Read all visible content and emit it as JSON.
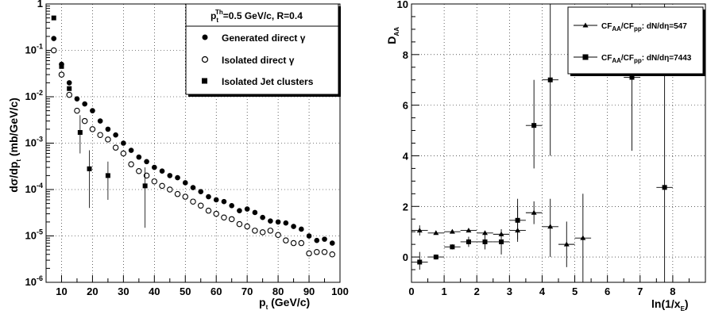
{
  "chart_data": [
    {
      "type": "scatter",
      "y_scale": "log",
      "xlim": [
        5,
        100
      ],
      "ylim": [
        1e-06,
        1
      ],
      "grid": true,
      "legend_position": "top-right",
      "xlabel": {
        "main": "p",
        "sub": "t",
        "unit": " (GeV/c)"
      },
      "ylabel": {
        "main": "dσ/dp",
        "sub": "t",
        "unit": " (mb/GeV/c)"
      },
      "x_ticks": [
        10,
        20,
        30,
        40,
        50,
        60,
        70,
        80,
        90,
        100
      ],
      "y_ticks": [
        {
          "value": 1e-06,
          "base": "10",
          "exp": "-6"
        },
        {
          "value": 1e-05,
          "base": "10",
          "exp": "-5"
        },
        {
          "value": 0.0001,
          "base": "10",
          "exp": "-4"
        },
        {
          "value": 0.001,
          "base": "10",
          "exp": "-3"
        },
        {
          "value": 0.01,
          "base": "10",
          "exp": "-2"
        },
        {
          "value": 0.1,
          "base": "10",
          "exp": "-1"
        },
        {
          "value": 1,
          "base": "1",
          "exp": ""
        }
      ],
      "legend_header": {
        "p": "p",
        "sub": "t",
        "sup": "Th",
        "rest": "=0.5 GeV/c, R=0.4"
      },
      "series": [
        {
          "name": "Generated direct γ",
          "marker": "filled-circle",
          "x": [
            7.5,
            10,
            12.5,
            15,
            17.5,
            20,
            22.5,
            25,
            27.5,
            30,
            32.5,
            35,
            37.5,
            40,
            42.5,
            45,
            47.5,
            50,
            52.5,
            55,
            57.5,
            60,
            62.5,
            65,
            67.5,
            70,
            72.5,
            75,
            77.5,
            80,
            82.5,
            85,
            87.5,
            90,
            92.5,
            95,
            97.5
          ],
          "y": [
            0.18,
            0.05,
            0.02,
            0.009,
            0.007,
            0.005,
            0.003,
            0.002,
            0.0015,
            0.001,
            0.0007,
            0.0005,
            0.0004,
            0.0003,
            0.00025,
            0.0002,
            0.00018,
            0.00014,
            0.00011,
            9e-05,
            7e-05,
            6e-05,
            5.5e-05,
            4.5e-05,
            3.5e-05,
            3.8e-05,
            3.2e-05,
            2.5e-05,
            2.1e-05,
            2e-05,
            1.9e-05,
            1.6e-05,
            1.4e-05,
            1e-05,
            8e-06,
            8.5e-06,
            7e-06
          ]
        },
        {
          "name": "Isolated direct γ",
          "marker": "open-circle",
          "x": [
            7.5,
            10,
            12.5,
            15,
            17.5,
            20,
            22.5,
            25,
            27.5,
            30,
            32.5,
            35,
            37.5,
            40,
            42.5,
            45,
            47.5,
            50,
            52.5,
            55,
            57.5,
            60,
            62.5,
            65,
            67.5,
            70,
            72.5,
            75,
            77.5,
            80,
            82.5,
            85,
            87.5,
            90,
            92.5,
            95,
            97.5
          ],
          "y": [
            0.1,
            0.03,
            0.011,
            0.005,
            0.003,
            0.002,
            0.0015,
            0.0012,
            0.0008,
            0.0006,
            0.00035,
            0.00025,
            0.0002,
            0.00015,
            0.00012,
            0.0001,
            8e-05,
            7e-05,
            5.5e-05,
            4.5e-05,
            3.5e-05,
            3e-05,
            2.5e-05,
            2.3e-05,
            1.8e-05,
            1.6e-05,
            1.3e-05,
            1.2e-05,
            1.3e-05,
            1.05e-05,
            8e-06,
            7e-06,
            7e-06,
            4.2e-06,
            4.5e-06,
            4.5e-06,
            4e-06
          ]
        },
        {
          "name": "Isolated Jet clusters",
          "marker": "filled-square",
          "points": [
            {
              "x": 7.5,
              "y": 0.5,
              "ylo": null,
              "yhi": null
            },
            {
              "x": 10,
              "y": 0.045,
              "ylo": null,
              "yhi": null
            },
            {
              "x": 12.5,
              "y": 0.015,
              "ylo": null,
              "yhi": null
            },
            {
              "x": 16,
              "y": 0.0017,
              "ylo": 0.0006,
              "yhi": 0.004
            },
            {
              "x": 19,
              "y": 0.00028,
              "ylo": 4e-05,
              "yhi": 0.0007
            },
            {
              "x": 25,
              "y": 0.0002,
              "ylo": 6e-05,
              "yhi": 0.0004
            },
            {
              "x": 37,
              "y": 0.00012,
              "ylo": 1.5e-05,
              "yhi": 0.0003
            }
          ]
        }
      ]
    },
    {
      "type": "scatter",
      "xlim": [
        0,
        9
      ],
      "ylim": [
        -1,
        10
      ],
      "grid": true,
      "legend_position": "top-right",
      "xlabel": {
        "main": "ln(1/x",
        "sub": "E",
        "unit": ")"
      },
      "ylabel": {
        "main": "D",
        "sub": "AA",
        "unit": ""
      },
      "x_ticks": [
        0,
        1,
        2,
        3,
        4,
        5,
        6,
        7,
        8
      ],
      "y_ticks": [
        0,
        2,
        4,
        6,
        8,
        10
      ],
      "series": [
        {
          "label_parts": {
            "a": "CF",
            "asub": "AA",
            "b": "/CF",
            "bsub": "pp",
            "c": ": dN/dη=547"
          },
          "marker": "filled-triangle",
          "points": [
            {
              "x": 0.25,
              "y": 1.05,
              "xerr": 0.25,
              "ylo": 0.85,
              "yhi": 1.25
            },
            {
              "x": 0.75,
              "y": 0.95,
              "xerr": 0.25,
              "ylo": 0.88,
              "yhi": 1.02
            },
            {
              "x": 1.25,
              "y": 1.0,
              "xerr": 0.25,
              "ylo": 0.95,
              "yhi": 1.05
            },
            {
              "x": 1.75,
              "y": 1.05,
              "xerr": 0.25,
              "ylo": 1.0,
              "yhi": 1.1
            },
            {
              "x": 2.25,
              "y": 0.95,
              "xerr": 0.25,
              "ylo": 0.88,
              "yhi": 1.02
            },
            {
              "x": 2.75,
              "y": 0.9,
              "xerr": 0.25,
              "ylo": 0.8,
              "yhi": 1.0
            },
            {
              "x": 3.25,
              "y": 1.05,
              "xerr": 0.25,
              "ylo": 0.6,
              "yhi": 2.0
            },
            {
              "x": 3.75,
              "y": 1.75,
              "xerr": 0.25,
              "ylo": 1.3,
              "yhi": 2.2
            },
            {
              "x": 4.25,
              "y": 1.2,
              "xerr": 0.25,
              "ylo": 0.0,
              "yhi": 2.3
            },
            {
              "x": 4.75,
              "y": 0.5,
              "xerr": 0.25,
              "ylo": -0.4,
              "yhi": 1.4
            },
            {
              "x": 5.25,
              "y": 0.75,
              "xerr": 0.25,
              "ylo": -1.0,
              "yhi": 2.5
            }
          ]
        },
        {
          "label_parts": {
            "a": "CF",
            "asub": "AA",
            "b": "/CF",
            "bsub": "pp",
            "c": ": dN/dη=7443"
          },
          "marker": "filled-square",
          "points": [
            {
              "x": 0.25,
              "y": -0.2,
              "xerr": 0.25,
              "ylo": -0.5,
              "yhi": 0.2
            },
            {
              "x": 0.75,
              "y": 0.0,
              "xerr": 0.25,
              "ylo": -0.1,
              "yhi": 0.1
            },
            {
              "x": 1.25,
              "y": 0.4,
              "xerr": 0.25,
              "ylo": 0.3,
              "yhi": 0.5
            },
            {
              "x": 1.75,
              "y": 0.6,
              "xerr": 0.25,
              "ylo": 0.4,
              "yhi": 0.8
            },
            {
              "x": 2.25,
              "y": 0.6,
              "xerr": 0.25,
              "ylo": 0.3,
              "yhi": 0.9
            },
            {
              "x": 2.75,
              "y": 0.6,
              "xerr": 0.25,
              "ylo": 0.1,
              "yhi": 1.1
            },
            {
              "x": 3.25,
              "y": 1.45,
              "xerr": 0.25,
              "ylo": 0.7,
              "yhi": 2.3
            },
            {
              "x": 3.75,
              "y": 5.2,
              "xerr": 0.25,
              "ylo": 3.5,
              "yhi": 7.0
            },
            {
              "x": 4.25,
              "y": 7.0,
              "xerr": 0.25,
              "ylo": 4.0,
              "yhi": 10.0
            },
            {
              "x": 6.75,
              "y": 7.1,
              "xerr": 0.25,
              "ylo": 4.2,
              "yhi": 10.0
            },
            {
              "x": 7.75,
              "y": 2.75,
              "xerr": 0.25,
              "ylo": -1.0,
              "yhi": 10.0
            }
          ]
        }
      ]
    }
  ]
}
